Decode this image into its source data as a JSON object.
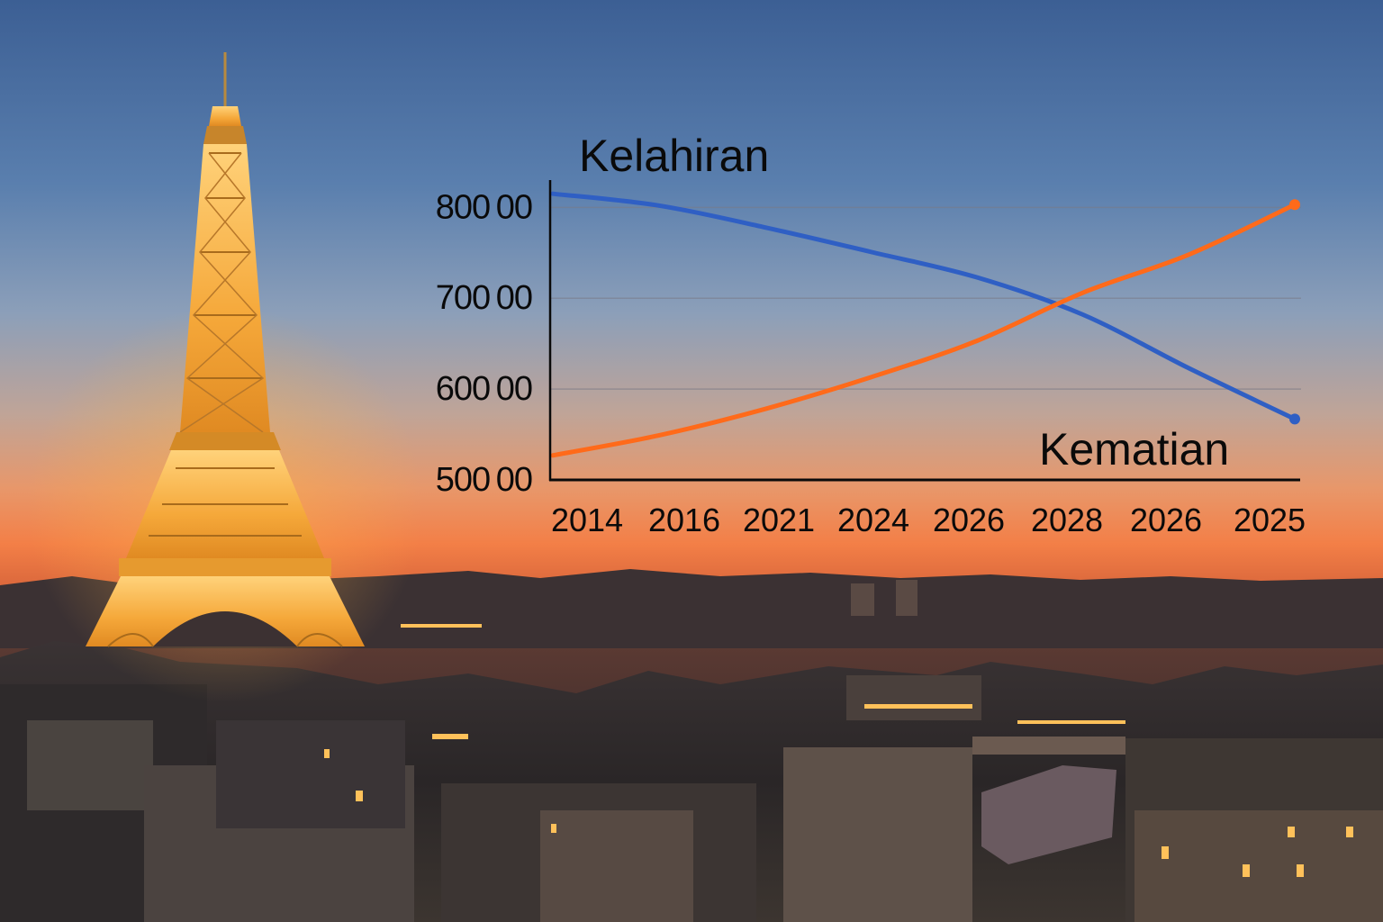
{
  "chart_data": {
    "type": "line",
    "title": "",
    "xlabel": "",
    "ylabel": "",
    "categories": [
      "2014",
      "2016",
      "2021",
      "2024",
      "2026",
      "2028",
      "2026",
      "2025"
    ],
    "y_tick_labels": [
      "800 00",
      "700 00",
      "600 00",
      "500 00"
    ],
    "y_ticks": [
      80000,
      70000,
      60000,
      50000
    ],
    "ylim": [
      50000,
      83500
    ],
    "grid": true,
    "series": [
      {
        "name": "Kelahiran",
        "color": "#2f5fc4",
        "values": [
          81500,
          80200,
          77800,
          75100,
          72300,
          68200,
          62300,
          56700
        ]
      },
      {
        "name": "Kematian",
        "color": "#ff6a1a",
        "values": [
          52700,
          54900,
          57800,
          61300,
          65300,
          70600,
          74800,
          80300
        ]
      }
    ]
  }
}
